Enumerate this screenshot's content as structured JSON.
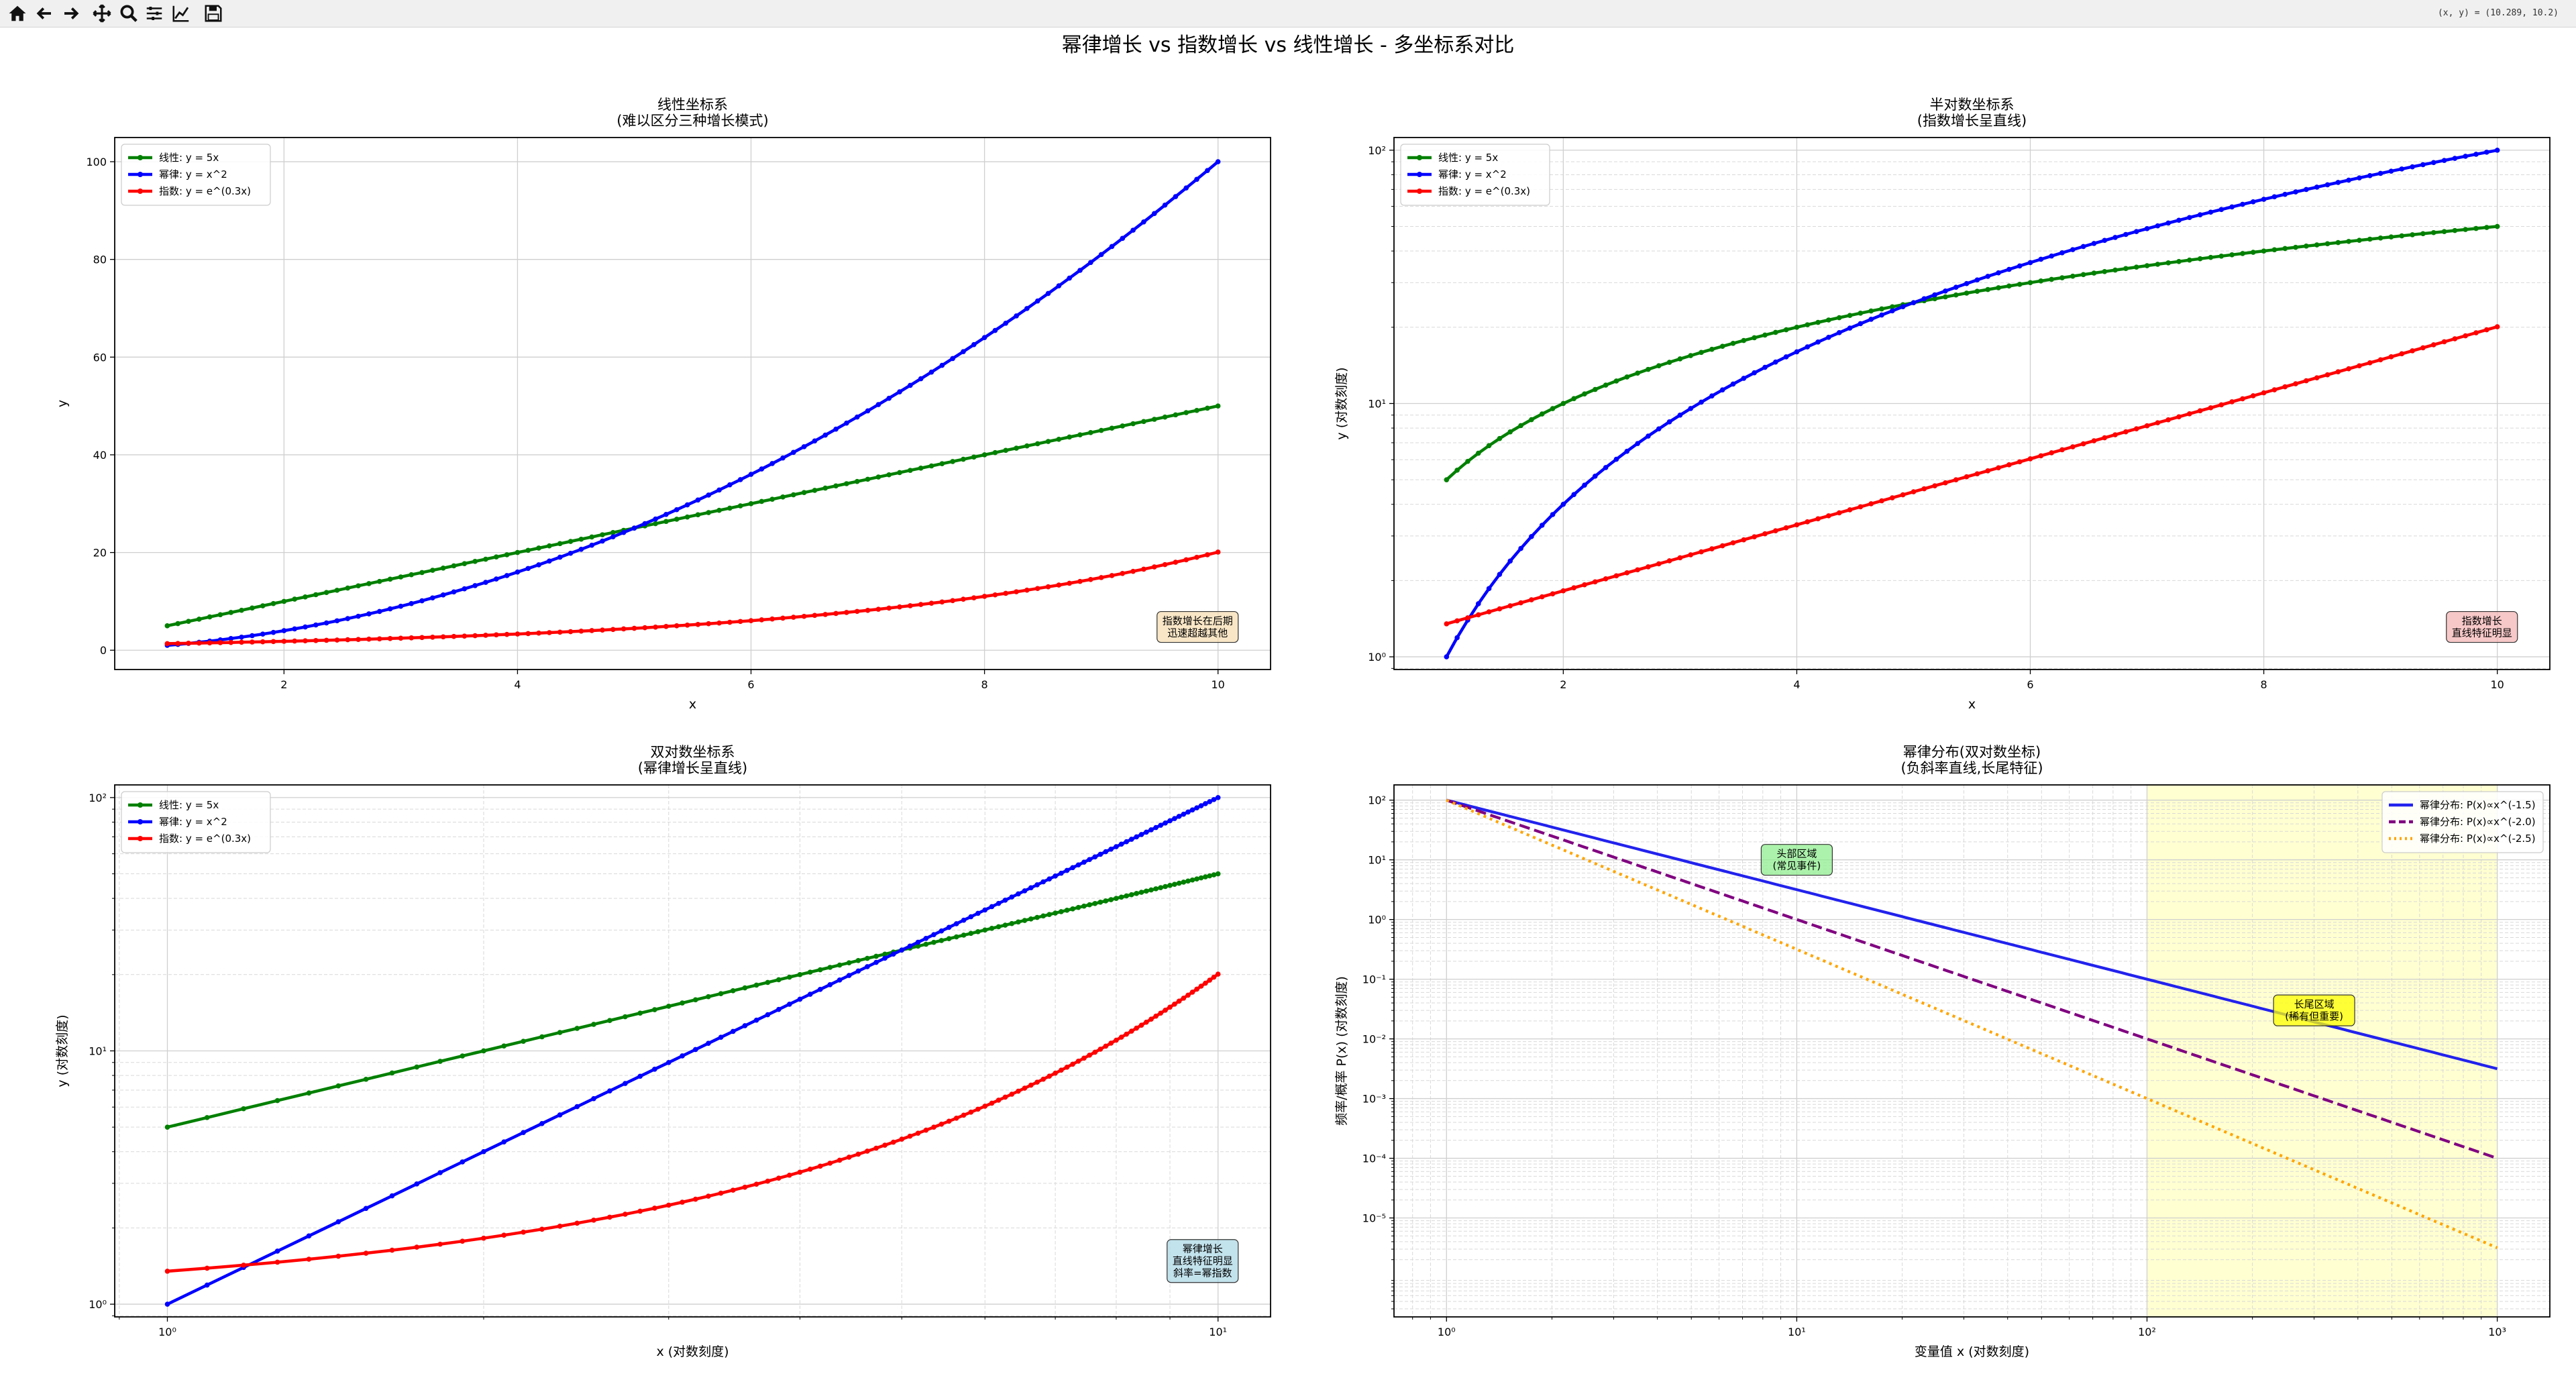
{
  "toolbar": {
    "buttons": [
      {
        "name": "home-icon",
        "label": "Home"
      },
      {
        "name": "back-icon",
        "label": "Back"
      },
      {
        "name": "forward-icon",
        "label": "Forward"
      },
      {
        "name": "pan-icon",
        "label": "Pan"
      },
      {
        "name": "zoom-icon",
        "label": "Zoom"
      },
      {
        "name": "configure-subplots-icon",
        "label": "Subplots"
      },
      {
        "name": "edit-axis-icon",
        "label": "Customize"
      },
      {
        "name": "save-icon",
        "label": "Save"
      }
    ],
    "coordinates": "(x, y) = (10.289, 10.2)"
  },
  "figure": {
    "suptitle": "幂律增长 vs 指数增长 vs 线性增长 - 多坐标系对比"
  },
  "colors": {
    "linear": "#008000",
    "power": "#0000ff",
    "exponential": "#ff0000",
    "pl15": "#2222ee",
    "pl20": "#800080",
    "pl25": "#ffa500",
    "tail_region": "#ffff00"
  },
  "chart_data": [
    {
      "type": "line",
      "title": "线性坐标系\n(难以区分三种增长模式)",
      "xlabel": "x",
      "ylabel": "y",
      "xscale": "linear",
      "yscale": "linear",
      "xlim": [
        0.55,
        10.45
      ],
      "ylim": [
        -3.95,
        104.95
      ],
      "xticks": [
        2,
        4,
        6,
        8,
        10
      ],
      "yticks": [
        0,
        20,
        40,
        60,
        80,
        100
      ],
      "grid": true,
      "legend_position": "top-left",
      "series": [
        {
          "name": "线性: y = 5x",
          "formula": "5x",
          "x_range": [
            1,
            10
          ],
          "points": 100,
          "color": "#008000",
          "marker": "point"
        },
        {
          "name": "幂律: y = x^2",
          "formula": "x^2",
          "x_range": [
            1,
            10
          ],
          "points": 100,
          "color": "#0000ff",
          "marker": "point"
        },
        {
          "name": "指数: y = e^(0.3x)",
          "formula": "e^(0.3x)",
          "x_range": [
            1,
            10
          ],
          "points": 100,
          "color": "#ff0000",
          "marker": "point"
        }
      ],
      "annotation": {
        "text": "指数增长在后期\n迅速超越其他",
        "box_color": "#f5deb3"
      }
    },
    {
      "type": "line",
      "title": "半对数坐标系\n(指数增长呈直线)",
      "xlabel": "x",
      "ylabel": "y (对数刻度)",
      "xscale": "linear",
      "yscale": "log",
      "xlim": [
        0.55,
        10.45
      ],
      "ylim": [
        0.891,
        112.2
      ],
      "xticks": [
        2,
        4,
        6,
        8,
        10
      ],
      "yticks": [
        1,
        10,
        100
      ],
      "ytick_labels": [
        "10⁰",
        "10¹",
        "10²"
      ],
      "grid": true,
      "legend_position": "top-left",
      "series": [
        {
          "name": "线性: y = 5x",
          "formula": "5x",
          "x_range": [
            1,
            10
          ],
          "points": 100,
          "color": "#008000",
          "marker": "point"
        },
        {
          "name": "幂律: y = x^2",
          "formula": "x^2",
          "x_range": [
            1,
            10
          ],
          "points": 100,
          "color": "#0000ff",
          "marker": "point"
        },
        {
          "name": "指数: y = e^(0.3x)",
          "formula": "e^(0.3x)",
          "x_range": [
            1,
            10
          ],
          "points": 100,
          "color": "#ff0000",
          "marker": "point"
        }
      ],
      "annotation": {
        "text": "指数增长\n直线特征明显",
        "box_color": "#f4b6b6"
      }
    },
    {
      "type": "line",
      "title": "双对数坐标系\n(幂律增长呈直线)",
      "xlabel": "x (对数刻度)",
      "ylabel": "y (对数刻度)",
      "xscale": "log",
      "yscale": "log",
      "xlim": [
        0.891,
        11.22
      ],
      "ylim": [
        0.891,
        112.2
      ],
      "xticks": [
        1,
        10
      ],
      "xtick_labels": [
        "10⁰",
        "10¹"
      ],
      "yticks": [
        1,
        10,
        100
      ],
      "ytick_labels": [
        "10⁰",
        "10¹",
        "10²"
      ],
      "grid": true,
      "legend_position": "top-left",
      "series": [
        {
          "name": "线性: y = 5x",
          "formula": "5x",
          "x_range": [
            1,
            10
          ],
          "points": 100,
          "color": "#008000",
          "marker": "point"
        },
        {
          "name": "幂律: y = x^2",
          "formula": "x^2",
          "x_range": [
            1,
            10
          ],
          "points": 100,
          "color": "#0000ff",
          "marker": "point"
        },
        {
          "name": "指数: y = e^(0.3x)",
          "formula": "e^(0.3x)",
          "x_range": [
            1,
            10
          ],
          "points": 100,
          "color": "#ff0000",
          "marker": "point"
        }
      ],
      "annotation": {
        "text": "幂律增长\n直线特征明显\n斜率=幂指数",
        "box_color": "#add8e6"
      }
    },
    {
      "type": "line",
      "title": "幂律分布(双对数坐标)\n(负斜率直线,长尾特征)",
      "xlabel": "变量值 x (对数刻度)",
      "ylabel": "频率/概率 P(x) (对数刻度)",
      "xscale": "log",
      "yscale": "log",
      "xlim": [
        0.708,
        1413
      ],
      "ylim": [
        2.2e-07,
        180
      ],
      "xticks": [
        1,
        10,
        100,
        1000
      ],
      "xtick_labels": [
        "10⁰",
        "10¹",
        "10²",
        "10³"
      ],
      "yticks": [
        100,
        10,
        1,
        0.1,
        0.01,
        0.001,
        0.0001,
        1e-05
      ],
      "ytick_labels": [
        "10²",
        "10¹",
        "10⁰",
        "10⁻¹",
        "10⁻²",
        "10⁻³",
        "10⁻⁴",
        "10⁻⁵"
      ],
      "grid": true,
      "legend_position": "top-right",
      "series": [
        {
          "name": "幂律分布: P(x)∝x^(-1.5)",
          "formula": "100*x^-1.5",
          "x_range": [
            1,
            1000
          ],
          "color": "#2222ee",
          "style": "solid"
        },
        {
          "name": "幂律分布: P(x)∝x^(-2.0)",
          "formula": "100*x^-2.0",
          "x_range": [
            1,
            1000
          ],
          "color": "#800080",
          "style": "dashed"
        },
        {
          "name": "幂律分布: P(x)∝x^(-2.5)",
          "formula": "100*x^-2.5",
          "x_range": [
            1,
            1000
          ],
          "color": "#ffa500",
          "style": "dotted"
        }
      ],
      "shaded_region": {
        "x_range": [
          100,
          1000
        ],
        "color": "#ffff00"
      },
      "annotations": [
        {
          "text": "头部区域\n(常见事件)",
          "x": 10,
          "y": 10,
          "box_color": "#90ee90"
        },
        {
          "text": "长尾区域\n(稀有但重要)",
          "x": 300,
          "y": 0.03,
          "box_color": "#ffff00"
        }
      ]
    }
  ]
}
